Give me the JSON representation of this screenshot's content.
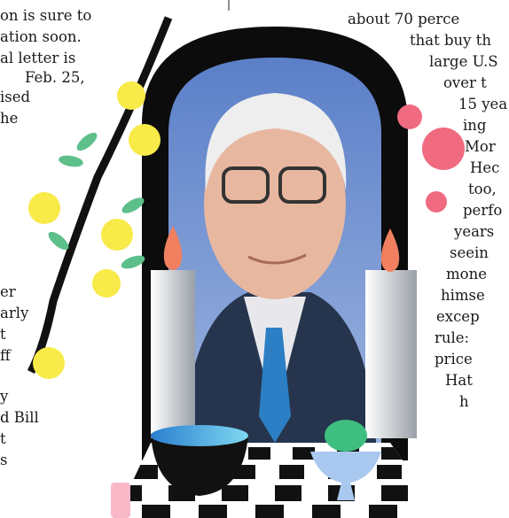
{
  "left_column": {
    "lines": [
      "on is sure to",
      "ation soon.",
      "al letter is",
      "Feb. 25,",
      "ised",
      "he",
      "er",
      "arly",
      "t",
      "ff",
      "y",
      "d Bill",
      "t",
      "s"
    ]
  },
  "right_column": {
    "lines": [
      "about 70 perce",
      "that buy th",
      "large U.S",
      "over t",
      "15 yea",
      "ing",
      "Mor",
      "Hec",
      "too,",
      "perfo",
      "years",
      "seein",
      "mone",
      "himse",
      "excep",
      "rule:",
      "price",
      "Hat",
      "h"
    ]
  }
}
